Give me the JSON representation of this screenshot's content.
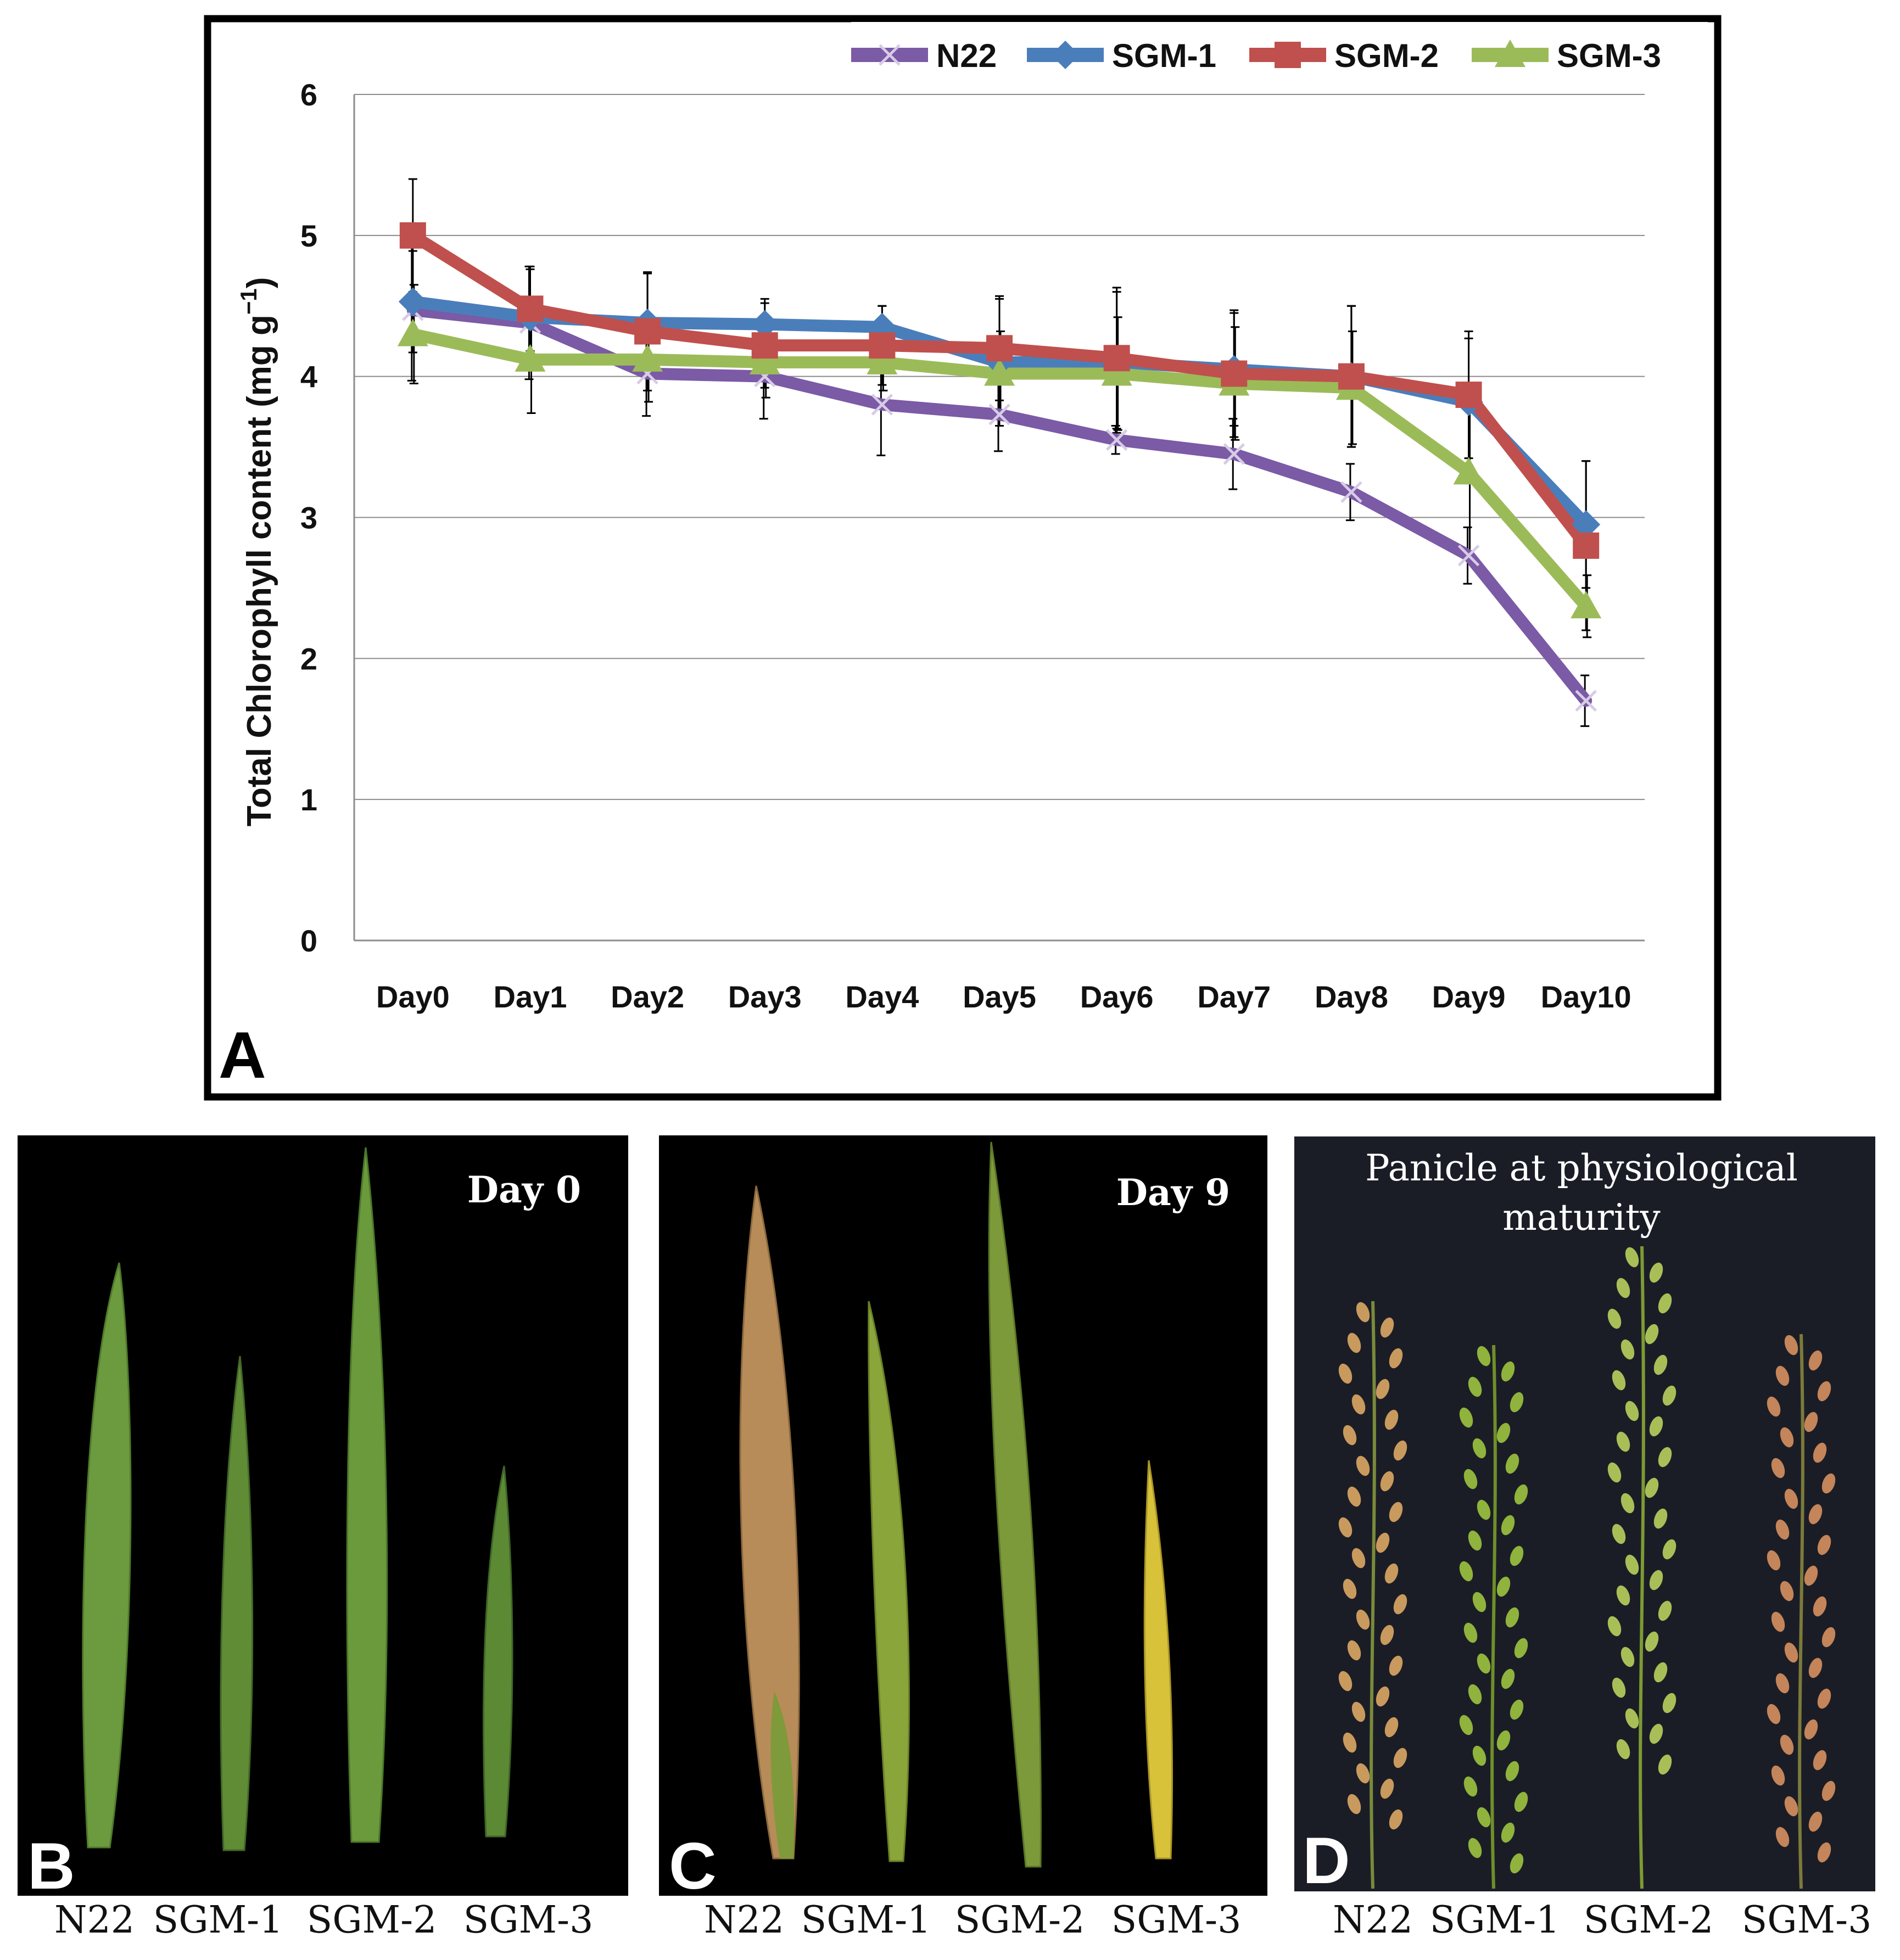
{
  "chart_data": {
    "type": "line",
    "title": "",
    "panel_label": "A",
    "xlabel": "",
    "ylabel": "Total Chlorophyll content (mg g",
    "ylabel_exponent": "−1",
    "ylabel_close": ")",
    "ylim": [
      0,
      6
    ],
    "yticks": [
      "0",
      "1",
      "2",
      "3",
      "4",
      "5",
      "6"
    ],
    "grid": true,
    "legend_position": "top-right",
    "categories": [
      "Day0",
      "Day1",
      "Day2",
      "Day3",
      "Day4",
      "Day5",
      "Day6",
      "Day7",
      "Day8",
      "Day9",
      "Day10"
    ],
    "series": [
      {
        "name": "N22",
        "color": "#7b5aa6",
        "marker": "x",
        "values": [
          4.47,
          4.38,
          4.02,
          4.0,
          3.8,
          3.73,
          3.55,
          3.45,
          3.18,
          2.73,
          1.7
        ],
        "errors": [
          0.5,
          0.4,
          0.3,
          0.3,
          0.36,
          0.26,
          0.1,
          0.25,
          0.2,
          0.2,
          0.18
        ]
      },
      {
        "name": "SGM-1",
        "color": "#4a7ebb",
        "marker": "diamond",
        "values": [
          4.53,
          4.42,
          4.38,
          4.37,
          4.35,
          4.1,
          4.1,
          4.05,
          4.0,
          3.82,
          2.95
        ],
        "errors": [
          0.36,
          0.34,
          0.35,
          0.18,
          0.15,
          0.45,
          0.5,
          0.4,
          0.5,
          0.45,
          0.45
        ]
      },
      {
        "name": "SGM-2",
        "color": "#c0504d",
        "marker": "square",
        "values": [
          5.0,
          4.48,
          4.32,
          4.22,
          4.22,
          4.2,
          4.13,
          4.02,
          4.0,
          3.87,
          2.8
        ],
        "errors": [
          0.4,
          0.3,
          0.42,
          0.3,
          0.28,
          0.37,
          0.5,
          0.45,
          0.5,
          0.45,
          0.6
        ]
      },
      {
        "name": "SGM-3",
        "color": "#9bbb59",
        "marker": "triangle",
        "values": [
          4.3,
          4.12,
          4.12,
          4.1,
          4.1,
          4.02,
          4.02,
          3.95,
          3.92,
          3.32,
          2.37
        ],
        "errors": [
          0.35,
          0.38,
          0.3,
          0.25,
          0.2,
          0.3,
          0.4,
          0.4,
          0.4,
          0.6,
          0.22
        ]
      }
    ]
  },
  "photo_panels": [
    {
      "letter": "B",
      "caption": "Day 0",
      "leaf_colors": [
        "#6c9a3e",
        "#5f8c35",
        "#6a9a3c",
        "#5c8a34"
      ],
      "labels": [
        "N22",
        "SGM-1",
        "SGM-2",
        "SGM-3"
      ]
    },
    {
      "letter": "C",
      "caption": "Day 9",
      "leaf_colors": [
        "#b88c58",
        "#8aa53a",
        "#7c9a3a",
        "#d8c23a"
      ],
      "labels": [
        "N22",
        "SGM-1",
        "SGM-2",
        "SGM-3"
      ]
    },
    {
      "letter": "D",
      "caption_line1": "Panicle at physiological",
      "caption_line2": "maturity",
      "labels": [
        "N22",
        "SGM-1",
        "SGM-2",
        "SGM-3"
      ]
    }
  ]
}
